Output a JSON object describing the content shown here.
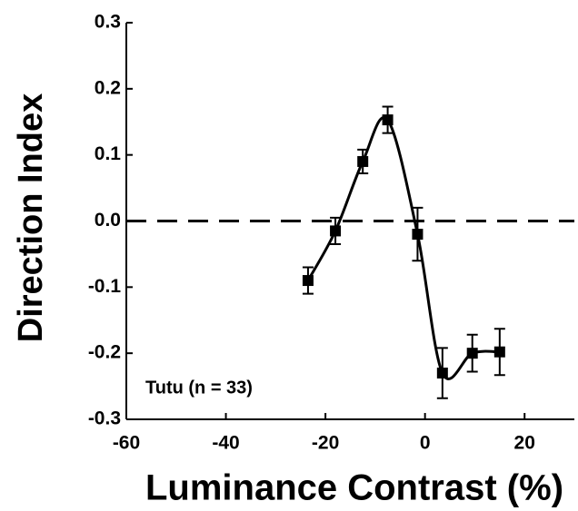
{
  "chart_data": {
    "type": "line",
    "xlabel": "Luminance Contrast (%)",
    "ylabel": "Direction Index",
    "annotation": "Tutu (n = 33)",
    "x": [
      -23.5,
      -18,
      -12.5,
      -7.5,
      -1.5,
      3.5,
      9.5,
      15
    ],
    "series": [
      {
        "color": "#000000",
        "values": [
          -0.09,
          -0.015,
          0.09,
          0.153,
          -0.02,
          -0.23,
          -0.2,
          -0.198
        ],
        "errors": [
          0.02,
          0.02,
          0.018,
          0.02,
          0.04,
          0.038,
          0.028,
          0.035
        ]
      }
    ],
    "xlim": [
      -60,
      30
    ],
    "xticks": [
      -60,
      -40,
      -20,
      0,
      20
    ],
    "ylim": [
      -0.3,
      0.3
    ],
    "yticks": [
      {
        "value": 0.3,
        "label": "0.3"
      },
      {
        "value": 0.2,
        "label": "0.2"
      },
      {
        "value": 0.1,
        "label": "0.1"
      },
      {
        "value": 0,
        "label": "0.0"
      },
      {
        "value": -0.1,
        "label": "-0.1"
      },
      {
        "value": -0.2,
        "label": "-0.2"
      },
      {
        "value": -0.3,
        "label": "-0.3"
      }
    ],
    "reference_line": 0
  }
}
